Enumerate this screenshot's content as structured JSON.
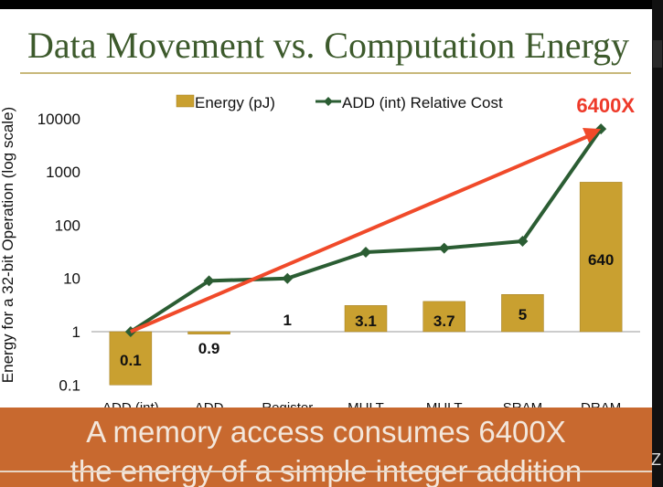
{
  "slide": {
    "title": "Data Movement vs. Computation Energy",
    "banner_line1": "A memory access consumes 6400X",
    "banner_line2": "the energy of a simple integer addition",
    "corner_text": "Z"
  },
  "colors": {
    "bar": "#c9a030",
    "line": "#2b5d33",
    "arrow": "#f04a2a",
    "callout": "#ee3a2a",
    "banner": "#c8692f",
    "title": "#3d5a2c"
  },
  "chart_data": {
    "type": "bar",
    "y_scale": "log",
    "ylim": [
      0.1,
      10000
    ],
    "ylabel": "Energy for a 32-bit Operation (log scale)",
    "yticks": [
      "0.1",
      "1",
      "10",
      "100",
      "1000",
      "10000"
    ],
    "categories": [
      "ADD (int)",
      "ADD",
      "Register",
      "MULT",
      "MULT",
      "SRAM",
      "DRAM"
    ],
    "legend": [
      "Energy (pJ)",
      "ADD (int) Relative Cost"
    ],
    "legend_position": "top",
    "series": [
      {
        "name": "Energy (pJ)",
        "kind": "bar",
        "values": [
          0.1,
          0.9,
          1,
          3.1,
          3.7,
          5,
          640
        ],
        "labels": [
          "0.1",
          "0.9",
          "1",
          "3.1",
          "3.7",
          "5",
          "640"
        ]
      },
      {
        "name": "ADD (int) Relative Cost",
        "kind": "line",
        "values": [
          1,
          9,
          10,
          31,
          37,
          50,
          6400
        ]
      }
    ],
    "annotation": "6400X"
  }
}
